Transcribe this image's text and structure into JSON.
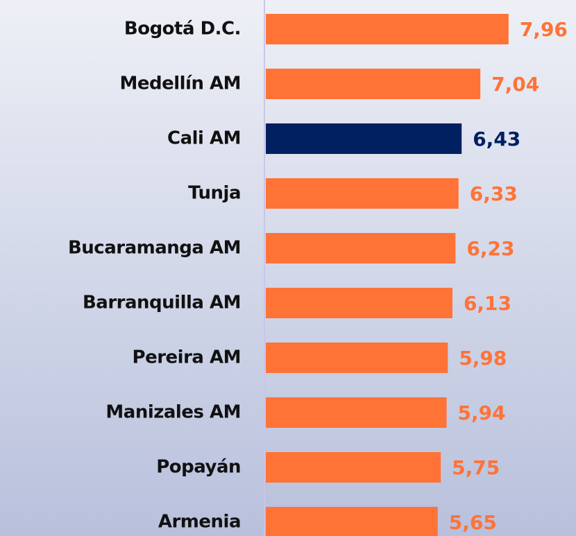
{
  "chart_data": {
    "type": "bar",
    "orientation": "horizontal",
    "categories": [
      "Bogotá D.C.",
      "Medellín AM",
      "Cali AM",
      "Tunja",
      "Bucaramanga AM",
      "Barranquilla AM",
      "Pereira AM",
      "Manizales AM",
      "Popayán",
      "Armenia"
    ],
    "values": [
      7.96,
      7.04,
      6.43,
      6.33,
      6.23,
      6.13,
      5.98,
      5.94,
      5.75,
      5.65
    ],
    "value_labels": [
      "7,96",
      "7,04",
      "6,43",
      "6,33",
      "6,23",
      "6,13",
      "5,98",
      "5,94",
      "5,75",
      "5,65"
    ],
    "colors": [
      "#ff7337",
      "#ff7337",
      "#002060",
      "#ff7337",
      "#ff7337",
      "#ff7337",
      "#ff7337",
      "#ff7337",
      "#ff7337",
      "#ff7337"
    ],
    "xlim": [
      0,
      10
    ]
  }
}
